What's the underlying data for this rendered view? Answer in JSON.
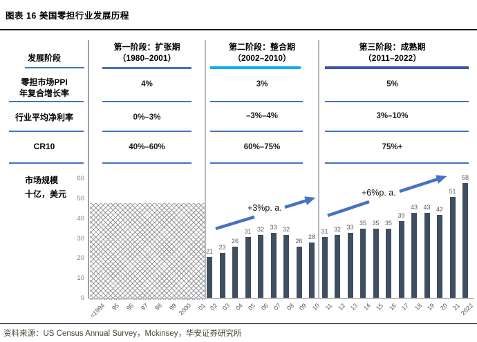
{
  "title": "图表 16 美国零担行业发展历程",
  "source": "资料来源：US Census Annual Survey，Mckinsey，华安证券研究所",
  "colors": {
    "bar": "#3F4E60",
    "arrow": "#4472C4",
    "underline": "#4472C4",
    "stage1_underline": "#4472C4",
    "stage2_underline": "#00B0F0",
    "stage3_underline": "#4153A8",
    "data_label": "#595959",
    "axis_label": "#7F7F7F",
    "source_text": "#4B4236"
  },
  "table": {
    "row_headers": {
      "stage": "发展阶段",
      "ppi_line1": "零担市场PPI",
      "ppi_line2": "年复合增长率",
      "margin": "行业平均净利率",
      "cr10": "CR10"
    },
    "stages": [
      {
        "title1": "第一阶段：扩张期",
        "title2": "（1980–2001）",
        "ppi": "4%",
        "margin": "0%–3%",
        "cr10": "40%–60%"
      },
      {
        "title1": "第二阶段：整合期",
        "title2": "（2002–2010）",
        "ppi": "3%",
        "margin": "–3%–4%",
        "cr10": "60%–75%"
      },
      {
        "title1": "第三阶段：成熟期",
        "title2": "（2011–2022）",
        "ppi": "5%",
        "margin": "3%–10%",
        "cr10": "75%+"
      }
    ]
  },
  "chart": {
    "ylabel_line1": "市场规模",
    "ylabel_line2": "十亿，美元",
    "annotation_stage2": "+3%p. a.",
    "annotation_stage3": "+6%p. a."
  },
  "chart_data": {
    "type": "bar",
    "ylabel": "市场规模 十亿，美元",
    "yticks": [
      0,
      10,
      20,
      30,
      40,
      50,
      60
    ],
    "ylim": [
      0,
      65
    ],
    "grid": false,
    "pre_period_labels": [
      "<1994",
      "95",
      "96",
      "97",
      "98",
      "99",
      "2000",
      "01"
    ],
    "pre_period_value": 48,
    "x": [
      "02",
      "03",
      "04",
      "05",
      "06",
      "07",
      "08",
      "09",
      "10",
      "11",
      "12",
      "13",
      "14",
      "15",
      "16",
      "17",
      "18",
      "19",
      "20",
      "21",
      "2022"
    ],
    "values": [
      21,
      23,
      26,
      31,
      32,
      33,
      32,
      26,
      28,
      31,
      32,
      33,
      35,
      35,
      35,
      39,
      43,
      43,
      42,
      51,
      58
    ],
    "annotations": [
      {
        "text": "+3%p. a."
      },
      {
        "text": "+6%p. a."
      }
    ]
  }
}
